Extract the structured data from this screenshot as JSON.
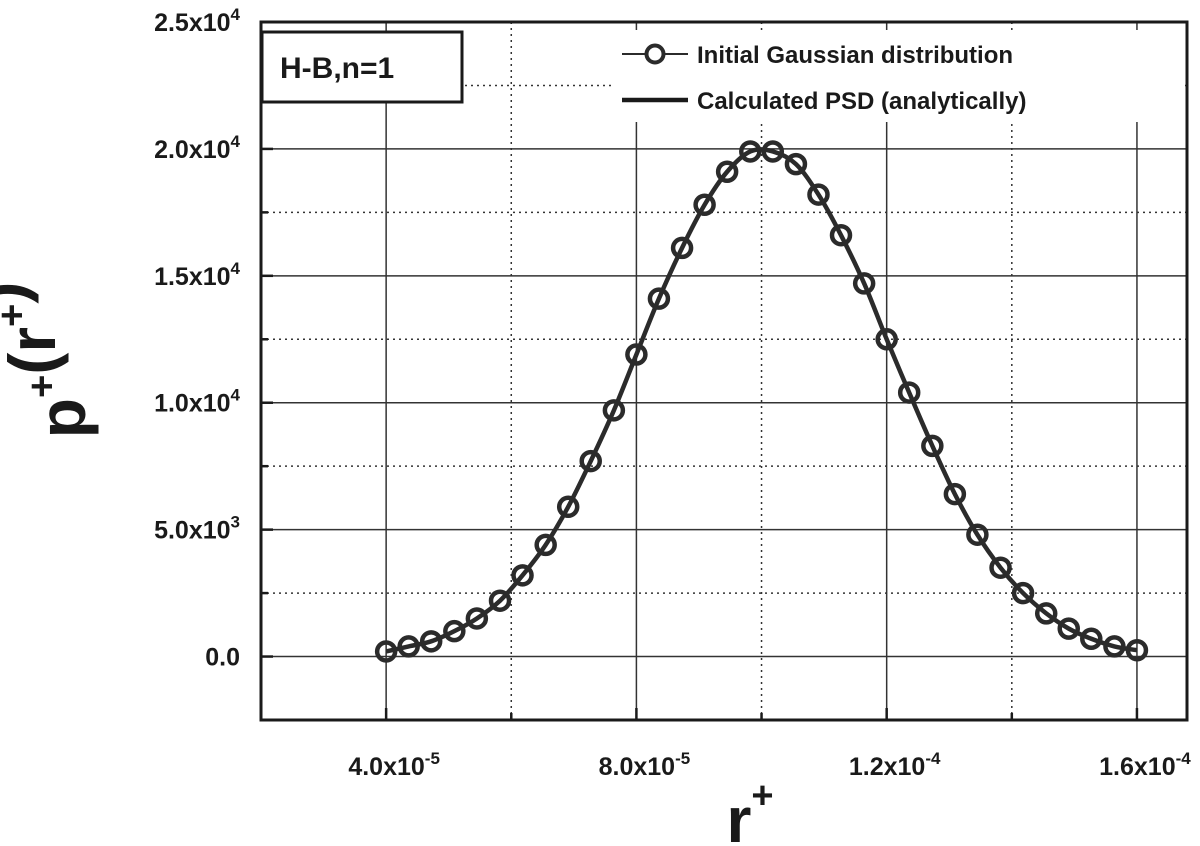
{
  "chart_data": {
    "type": "line",
    "annotation": "H-B,n=1",
    "xlabel": {
      "base": "r",
      "sup": "+"
    },
    "ylabel": {
      "parts": [
        {
          "t": "p",
          "sup": "+"
        },
        {
          "t": "(r",
          "sup": "+"
        },
        {
          "t": ")",
          "sup": ""
        }
      ]
    },
    "xlim": [
      2e-05,
      0.000168
    ],
    "ylim": [
      -2500,
      25000
    ],
    "x_major_ticks": [
      4e-05,
      8e-05,
      0.00012,
      0.00016
    ],
    "x_minor_ticks": [
      6e-05,
      0.0001,
      0.00014
    ],
    "y_major_ticks": [
      0,
      5000,
      10000,
      15000,
      20000,
      25000
    ],
    "y_minor_ticks": [
      2500,
      7500,
      12500,
      17500,
      22500
    ],
    "x_tick_labels": [
      {
        "mant": "4.0x10",
        "exp": "-5"
      },
      {
        "mant": "8.0x10",
        "exp": "-5"
      },
      {
        "mant": "1.2x10",
        "exp": "-4"
      },
      {
        "mant": "1.6x10",
        "exp": "-4"
      }
    ],
    "y_tick_labels": [
      {
        "mant": "0.0",
        "exp": ""
      },
      {
        "mant": "5.0x10",
        "exp": "3"
      },
      {
        "mant": "1.0x10",
        "exp": "4"
      },
      {
        "mant": "1.5x10",
        "exp": "4"
      },
      {
        "mant": "2.0x10",
        "exp": "4"
      },
      {
        "mant": "2.5x10",
        "exp": "4"
      }
    ],
    "grid": true,
    "legend_position": "top-right",
    "series": [
      {
        "name": "Initial Gaussian distribution",
        "style": "markers",
        "marker": "circle",
        "x": [
          4e-05,
          4.36e-05,
          4.72e-05,
          5.09e-05,
          5.45e-05,
          5.82e-05,
          6.18e-05,
          6.55e-05,
          6.91e-05,
          7.27e-05,
          7.64e-05,
          8e-05,
          8.36e-05,
          8.73e-05,
          9.09e-05,
          9.45e-05,
          9.82e-05,
          0.0001018,
          0.0001055,
          0.0001091,
          0.0001127,
          0.0001164,
          0.00012,
          0.0001236,
          0.0001273,
          0.0001309,
          0.0001345,
          0.0001382,
          0.0001418,
          0.0001455,
          0.0001491,
          0.0001527,
          0.0001564,
          0.00016
        ],
        "y": [
          200,
          400,
          600,
          1000,
          1500,
          2200,
          3200,
          4400,
          5900,
          7700,
          9700,
          11900,
          14100,
          16100,
          17800,
          19100,
          19900,
          19900,
          19400,
          18200,
          16600,
          14700,
          12500,
          10400,
          8300,
          6400,
          4800,
          3500,
          2500,
          1700,
          1100,
          700,
          400,
          250
        ]
      },
      {
        "name": "Calculated PSD (analytically)",
        "style": "line",
        "x": [
          4e-05,
          4.36e-05,
          4.72e-05,
          5.09e-05,
          5.45e-05,
          5.82e-05,
          6.18e-05,
          6.55e-05,
          6.91e-05,
          7.27e-05,
          7.64e-05,
          8e-05,
          8.36e-05,
          8.73e-05,
          9.09e-05,
          9.45e-05,
          9.82e-05,
          0.0001018,
          0.0001055,
          0.0001091,
          0.0001127,
          0.0001164,
          0.00012,
          0.0001236,
          0.0001273,
          0.0001309,
          0.0001345,
          0.0001382,
          0.0001418,
          0.0001455,
          0.0001491,
          0.0001527,
          0.0001564,
          0.00016
        ],
        "y": [
          200,
          400,
          600,
          1000,
          1500,
          2200,
          3200,
          4400,
          5900,
          7700,
          9700,
          11900,
          14100,
          16100,
          17800,
          19100,
          19900,
          19900,
          19400,
          18200,
          16600,
          14700,
          12500,
          10400,
          8300,
          6400,
          4800,
          3500,
          2500,
          1700,
          1100,
          700,
          400,
          250
        ]
      }
    ],
    "colors": {
      "line": "#2b2b2b",
      "grid": "#333333"
    }
  }
}
